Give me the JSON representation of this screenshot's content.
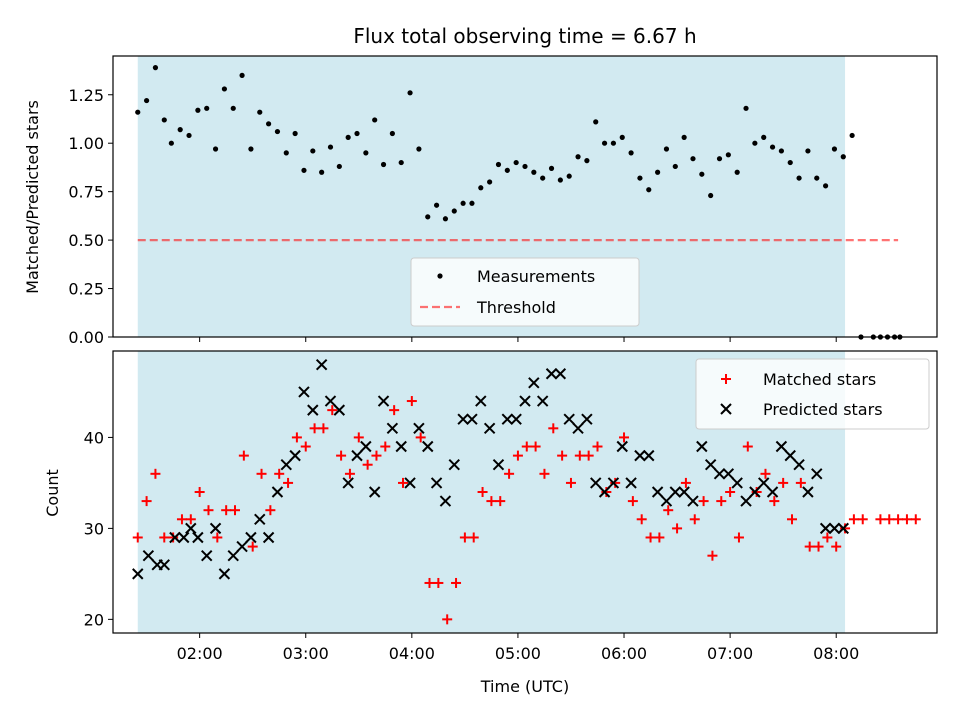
{
  "title": "Flux total observing time = 6.67 h",
  "colors": {
    "shade": "#add8e6",
    "measurement": "#000000",
    "threshold": "#ff0000",
    "matched": "#ff0000",
    "predicted": "#000000"
  },
  "chart_data": [
    {
      "type": "scatter",
      "ylabel": "Matched/Predicted stars",
      "ylim": [
        0,
        1.45
      ],
      "xlim": [
        "01:11",
        "08:57"
      ],
      "yticks": [
        0,
        0.25,
        0.5,
        0.75,
        1.0,
        1.25
      ],
      "ytick_labels": [
        "0.00",
        "0.25",
        "0.50",
        "0.75",
        "1.00",
        "1.25"
      ],
      "observing_window": [
        "01:25",
        "08:05"
      ],
      "threshold": {
        "value": 0.5,
        "x_range": [
          "01:25",
          "08:35"
        ]
      },
      "legend": {
        "position": "lower center",
        "labels": [
          "Measurements",
          "Threshold"
        ]
      },
      "series": [
        {
          "name": "Measurements",
          "points": [
            [
              "01:25",
              1.16
            ],
            [
              "01:30",
              1.22
            ],
            [
              "01:35",
              1.39
            ],
            [
              "01:40",
              1.12
            ],
            [
              "01:44",
              1.0
            ],
            [
              "01:49",
              1.07
            ],
            [
              "01:54",
              1.04
            ],
            [
              "01:59",
              1.17
            ],
            [
              "02:04",
              1.18
            ],
            [
              "02:09",
              0.97
            ],
            [
              "02:14",
              1.28
            ],
            [
              "02:19",
              1.18
            ],
            [
              "02:24",
              1.35
            ],
            [
              "02:29",
              0.97
            ],
            [
              "02:34",
              1.16
            ],
            [
              "02:39",
              1.1
            ],
            [
              "02:44",
              1.06
            ],
            [
              "02:49",
              0.95
            ],
            [
              "02:54",
              1.05
            ],
            [
              "02:59",
              0.86
            ],
            [
              "03:04",
              0.96
            ],
            [
              "03:09",
              0.85
            ],
            [
              "03:14",
              0.98
            ],
            [
              "03:19",
              0.88
            ],
            [
              "03:24",
              1.03
            ],
            [
              "03:29",
              1.05
            ],
            [
              "03:34",
              0.95
            ],
            [
              "03:39",
              1.12
            ],
            [
              "03:44",
              0.89
            ],
            [
              "03:49",
              1.05
            ],
            [
              "03:54",
              0.9
            ],
            [
              "03:59",
              1.26
            ],
            [
              "04:04",
              0.97
            ],
            [
              "04:09",
              0.62
            ],
            [
              "04:14",
              0.68
            ],
            [
              "04:19",
              0.61
            ],
            [
              "04:24",
              0.65
            ],
            [
              "04:29",
              0.69
            ],
            [
              "04:34",
              0.69
            ],
            [
              "04:39",
              0.77
            ],
            [
              "04:44",
              0.8
            ],
            [
              "04:49",
              0.89
            ],
            [
              "04:54",
              0.86
            ],
            [
              "04:59",
              0.9
            ],
            [
              "05:04",
              0.88
            ],
            [
              "05:09",
              0.85
            ],
            [
              "05:14",
              0.82
            ],
            [
              "05:19",
              0.87
            ],
            [
              "05:24",
              0.81
            ],
            [
              "05:29",
              0.83
            ],
            [
              "05:34",
              0.93
            ],
            [
              "05:39",
              0.91
            ],
            [
              "05:44",
              1.11
            ],
            [
              "05:49",
              1.0
            ],
            [
              "05:54",
              1.0
            ],
            [
              "05:59",
              1.03
            ],
            [
              "06:04",
              0.95
            ],
            [
              "06:09",
              0.82
            ],
            [
              "06:14",
              0.76
            ],
            [
              "06:19",
              0.85
            ],
            [
              "06:24",
              0.97
            ],
            [
              "06:29",
              0.88
            ],
            [
              "06:34",
              1.03
            ],
            [
              "06:39",
              0.92
            ],
            [
              "06:44",
              0.84
            ],
            [
              "06:49",
              0.73
            ],
            [
              "06:54",
              0.92
            ],
            [
              "06:59",
              0.94
            ],
            [
              "07:04",
              0.85
            ],
            [
              "07:09",
              1.18
            ],
            [
              "07:14",
              1.0
            ],
            [
              "07:19",
              1.03
            ],
            [
              "07:24",
              0.98
            ],
            [
              "07:29",
              0.96
            ],
            [
              "07:34",
              0.9
            ],
            [
              "07:39",
              0.82
            ],
            [
              "07:44",
              0.96
            ],
            [
              "07:49",
              0.82
            ],
            [
              "07:54",
              0.78
            ],
            [
              "07:59",
              0.97
            ],
            [
              "08:04",
              0.93
            ],
            [
              "08:09",
              1.04
            ],
            [
              "08:14",
              0.0
            ],
            [
              "08:21",
              0.0
            ],
            [
              "08:25",
              0.0
            ],
            [
              "08:29",
              0.0
            ],
            [
              "08:33",
              0.0
            ],
            [
              "08:36",
              0.0
            ]
          ]
        }
      ]
    },
    {
      "type": "scatter",
      "xlabel": "Time (UTC)",
      "ylabel": "Count",
      "ylim": [
        18.5,
        49.5
      ],
      "xlim": [
        "01:11",
        "08:57"
      ],
      "yticks": [
        20,
        30,
        40
      ],
      "ytick_labels": [
        "20",
        "30",
        "40"
      ],
      "xticks": [
        "02:00",
        "03:00",
        "04:00",
        "05:00",
        "06:00",
        "07:00",
        "08:00"
      ],
      "observing_window": [
        "01:25",
        "08:05"
      ],
      "legend": {
        "position": "upper right",
        "labels": [
          "Matched stars",
          "Predicted stars"
        ]
      },
      "series": [
        {
          "name": "Matched stars",
          "points": [
            [
              "01:25",
              29
            ],
            [
              "01:30",
              33
            ],
            [
              "01:35",
              36
            ],
            [
              "01:40",
              29
            ],
            [
              "01:45",
              29
            ],
            [
              "01:50",
              31
            ],
            [
              "01:55",
              31
            ],
            [
              "02:00",
              34
            ],
            [
              "02:05",
              32
            ],
            [
              "02:10",
              29
            ],
            [
              "02:15",
              32
            ],
            [
              "02:20",
              32
            ],
            [
              "02:25",
              38
            ],
            [
              "02:30",
              28
            ],
            [
              "02:35",
              36
            ],
            [
              "02:40",
              32
            ],
            [
              "02:45",
              36
            ],
            [
              "02:50",
              35
            ],
            [
              "02:55",
              40
            ],
            [
              "03:00",
              39
            ],
            [
              "03:05",
              41
            ],
            [
              "03:10",
              41
            ],
            [
              "03:15",
              43
            ],
            [
              "03:20",
              38
            ],
            [
              "03:25",
              36
            ],
            [
              "03:30",
              40
            ],
            [
              "03:35",
              37
            ],
            [
              "03:40",
              38
            ],
            [
              "03:45",
              39
            ],
            [
              "03:50",
              43
            ],
            [
              "03:55",
              35
            ],
            [
              "04:00",
              44
            ],
            [
              "04:05",
              40
            ],
            [
              "04:10",
              24
            ],
            [
              "04:15",
              24
            ],
            [
              "04:20",
              20
            ],
            [
              "04:25",
              24
            ],
            [
              "04:30",
              29
            ],
            [
              "04:35",
              29
            ],
            [
              "04:40",
              34
            ],
            [
              "04:45",
              33
            ],
            [
              "04:50",
              33
            ],
            [
              "04:55",
              36
            ],
            [
              "05:00",
              38
            ],
            [
              "05:05",
              39
            ],
            [
              "05:10",
              39
            ],
            [
              "05:15",
              36
            ],
            [
              "05:20",
              41
            ],
            [
              "05:25",
              38
            ],
            [
              "05:30",
              35
            ],
            [
              "05:35",
              38
            ],
            [
              "05:40",
              38
            ],
            [
              "05:45",
              39
            ],
            [
              "05:50",
              34
            ],
            [
              "05:55",
              35
            ],
            [
              "06:00",
              40
            ],
            [
              "06:05",
              33
            ],
            [
              "06:10",
              31
            ],
            [
              "06:15",
              29
            ],
            [
              "06:20",
              29
            ],
            [
              "06:25",
              32
            ],
            [
              "06:30",
              30
            ],
            [
              "06:35",
              35
            ],
            [
              "06:40",
              31
            ],
            [
              "06:45",
              33
            ],
            [
              "06:50",
              27
            ],
            [
              "06:55",
              33
            ],
            [
              "07:00",
              34
            ],
            [
              "07:05",
              29
            ],
            [
              "07:10",
              39
            ],
            [
              "07:15",
              34
            ],
            [
              "07:20",
              36
            ],
            [
              "07:25",
              33
            ],
            [
              "07:30",
              35
            ],
            [
              "07:35",
              31
            ],
            [
              "07:40",
              35
            ],
            [
              "07:45",
              28
            ],
            [
              "07:50",
              28
            ],
            [
              "07:55",
              29
            ],
            [
              "08:00",
              28
            ],
            [
              "08:05",
              30
            ],
            [
              "08:10",
              31
            ],
            [
              "08:15",
              31
            ],
            [
              "08:25",
              31
            ],
            [
              "08:30",
              31
            ],
            [
              "08:35",
              31
            ],
            [
              "08:40",
              31
            ],
            [
              "08:45",
              31
            ]
          ]
        },
        {
          "name": "Predicted stars",
          "points": [
            [
              "01:25",
              25
            ],
            [
              "01:31",
              27
            ],
            [
              "01:36",
              26
            ],
            [
              "01:40",
              26
            ],
            [
              "01:46",
              29
            ],
            [
              "01:51",
              29
            ],
            [
              "01:55",
              30
            ],
            [
              "01:59",
              29
            ],
            [
              "02:04",
              27
            ],
            [
              "02:09",
              30
            ],
            [
              "02:14",
              25
            ],
            [
              "02:19",
              27
            ],
            [
              "02:24",
              28
            ],
            [
              "02:29",
              29
            ],
            [
              "02:34",
              31
            ],
            [
              "02:39",
              29
            ],
            [
              "02:44",
              34
            ],
            [
              "02:49",
              37
            ],
            [
              "02:54",
              38
            ],
            [
              "02:59",
              45
            ],
            [
              "03:04",
              43
            ],
            [
              "03:09",
              48
            ],
            [
              "03:14",
              44
            ],
            [
              "03:19",
              43
            ],
            [
              "03:24",
              35
            ],
            [
              "03:29",
              38
            ],
            [
              "03:34",
              39
            ],
            [
              "03:39",
              34
            ],
            [
              "03:44",
              44
            ],
            [
              "03:49",
              41
            ],
            [
              "03:54",
              39
            ],
            [
              "03:59",
              35
            ],
            [
              "04:04",
              41
            ],
            [
              "04:09",
              39
            ],
            [
              "04:14",
              35
            ],
            [
              "04:19",
              33
            ],
            [
              "04:24",
              37
            ],
            [
              "04:29",
              42
            ],
            [
              "04:34",
              42
            ],
            [
              "04:39",
              44
            ],
            [
              "04:44",
              41
            ],
            [
              "04:49",
              37
            ],
            [
              "04:54",
              42
            ],
            [
              "04:59",
              42
            ],
            [
              "05:04",
              44
            ],
            [
              "05:09",
              46
            ],
            [
              "05:14",
              44
            ],
            [
              "05:19",
              47
            ],
            [
              "05:24",
              47
            ],
            [
              "05:29",
              42
            ],
            [
              "05:34",
              41
            ],
            [
              "05:39",
              42
            ],
            [
              "05:44",
              35
            ],
            [
              "05:49",
              34
            ],
            [
              "05:54",
              35
            ],
            [
              "05:59",
              39
            ],
            [
              "06:04",
              35
            ],
            [
              "06:09",
              38
            ],
            [
              "06:14",
              38
            ],
            [
              "06:19",
              34
            ],
            [
              "06:24",
              33
            ],
            [
              "06:29",
              34
            ],
            [
              "06:34",
              34
            ],
            [
              "06:39",
              33
            ],
            [
              "06:44",
              39
            ],
            [
              "06:49",
              37
            ],
            [
              "06:54",
              36
            ],
            [
              "06:59",
              36
            ],
            [
              "07:04",
              35
            ],
            [
              "07:09",
              33
            ],
            [
              "07:14",
              34
            ],
            [
              "07:19",
              35
            ],
            [
              "07:24",
              34
            ],
            [
              "07:29",
              39
            ],
            [
              "07:34",
              38
            ],
            [
              "07:39",
              37
            ],
            [
              "07:44",
              34
            ],
            [
              "07:49",
              36
            ],
            [
              "07:54",
              30
            ],
            [
              "07:59",
              30
            ],
            [
              "08:04",
              30
            ]
          ]
        }
      ]
    }
  ]
}
